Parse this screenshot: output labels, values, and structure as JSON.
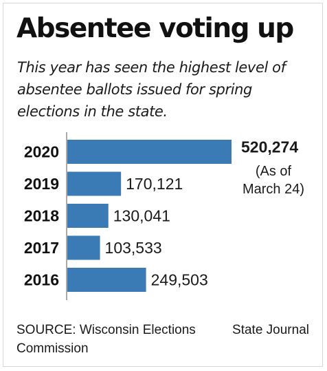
{
  "header": {
    "title": "Absentee voting up",
    "subtitle": "This year has seen the highest level of absentee ballots issued for spring elections in the state."
  },
  "chart_data": {
    "type": "bar",
    "orientation": "horizontal",
    "categories": [
      "2020",
      "2019",
      "2018",
      "2017",
      "2016"
    ],
    "values": [
      520274,
      170121,
      130041,
      103533,
      249503
    ],
    "value_labels": [
      "520,274",
      "170,121",
      "130,041",
      "103,533",
      "249,503"
    ],
    "annotations": [
      {
        "category": "2020",
        "lines": [
          "(As of",
          "March 24)"
        ]
      }
    ],
    "highlight_category": "2020",
    "bar_color": "#3a7ab5",
    "axis_color": "#aaaaaa",
    "grid": false,
    "legend": "none",
    "xlim": [
      0,
      520274
    ]
  },
  "footer": {
    "source": "SOURCE: Wisconsin Elections Commission",
    "credit": "State Journal"
  }
}
